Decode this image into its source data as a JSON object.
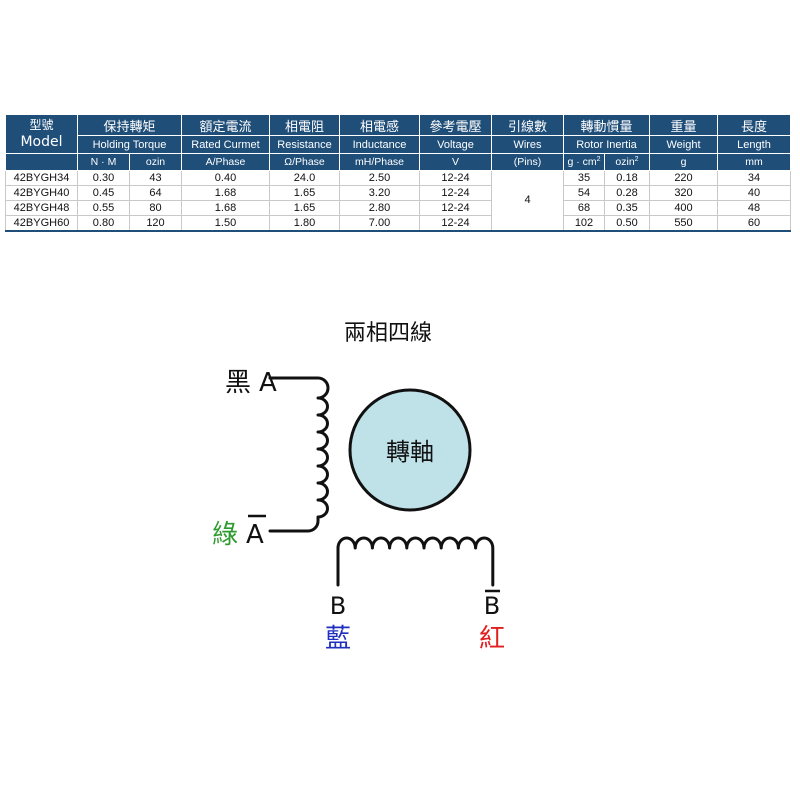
{
  "table": {
    "header": {
      "model_zh": "型號",
      "model_en": "Model",
      "groups": [
        {
          "zh": "保持轉矩",
          "en": "Holding Torque",
          "units": [
            "N · M",
            "ozin"
          ]
        },
        {
          "zh": "額定電流",
          "en": "Rated Curmet",
          "units": [
            "A/Phase"
          ]
        },
        {
          "zh": "相電阻",
          "en": "Resistance",
          "units": [
            "Ω/Phase"
          ]
        },
        {
          "zh": "相電感",
          "en": "Inductance",
          "units": [
            "mH/Phase"
          ]
        },
        {
          "zh": "參考電壓",
          "en": "Voltage",
          "units": [
            "V"
          ]
        },
        {
          "zh": "引線數",
          "en": "Wires",
          "units": [
            "(Pins)"
          ]
        },
        {
          "zh": "轉動慣量",
          "en": "Rotor Inertia",
          "units": [
            "g · cm",
            "ozin"
          ]
        },
        {
          "zh": "重量",
          "en": "Weight",
          "units": [
            "g"
          ]
        },
        {
          "zh": "長度",
          "en": "Length",
          "units": [
            "mm"
          ]
        }
      ],
      "unit_superscript": "2"
    },
    "rows": [
      {
        "model": "42BYGH34",
        "nm": "0.30",
        "ozin": "43",
        "current": "0.40",
        "resistance": "24.0",
        "inductance": "2.50",
        "voltage": "12-24",
        "inertia_gcm": "35",
        "inertia_ozin": "0.18",
        "weight": "220",
        "length": "34"
      },
      {
        "model": "42BYGH40",
        "nm": "0.45",
        "ozin": "64",
        "current": "1.68",
        "resistance": "1.65",
        "inductance": "3.20",
        "voltage": "12-24",
        "inertia_gcm": "54",
        "inertia_ozin": "0.28",
        "weight": "320",
        "length": "40"
      },
      {
        "model": "42BYGH48",
        "nm": "0.55",
        "ozin": "80",
        "current": "1.68",
        "resistance": "1.65",
        "inductance": "2.80",
        "voltage": "12-24",
        "inertia_gcm": "68",
        "inertia_ozin": "0.35",
        "weight": "400",
        "length": "48"
      },
      {
        "model": "42BYGH60",
        "nm": "0.80",
        "ozin": "120",
        "current": "1.50",
        "resistance": "1.80",
        "inductance": "7.00",
        "voltage": "12-24",
        "inertia_gcm": "102",
        "inertia_ozin": "0.50",
        "weight": "550",
        "length": "60"
      }
    ],
    "wires_value": "4",
    "colors": {
      "header_bg": "#1f4e79",
      "header_text": "#ffffff",
      "rule": "#c9c9c9"
    }
  },
  "diagram": {
    "title": "兩相四線",
    "rotor_label": "轉軸",
    "terminal_a": {
      "color_name": "黑",
      "name": "A",
      "text_color": "#111111"
    },
    "terminal_a_bar": {
      "color_name": "綠",
      "name": "A",
      "text_color": "#2e9b2e"
    },
    "terminal_b": {
      "color_name": "藍",
      "name": "B",
      "text_color": "#1f2fbf"
    },
    "terminal_b_bar": {
      "color_name": "紅",
      "name": "B",
      "text_color": "#e02020"
    },
    "colors": {
      "rotor_fill": "#bfe1e8",
      "rotor_stroke": "#111111",
      "wire": "#111111"
    }
  }
}
